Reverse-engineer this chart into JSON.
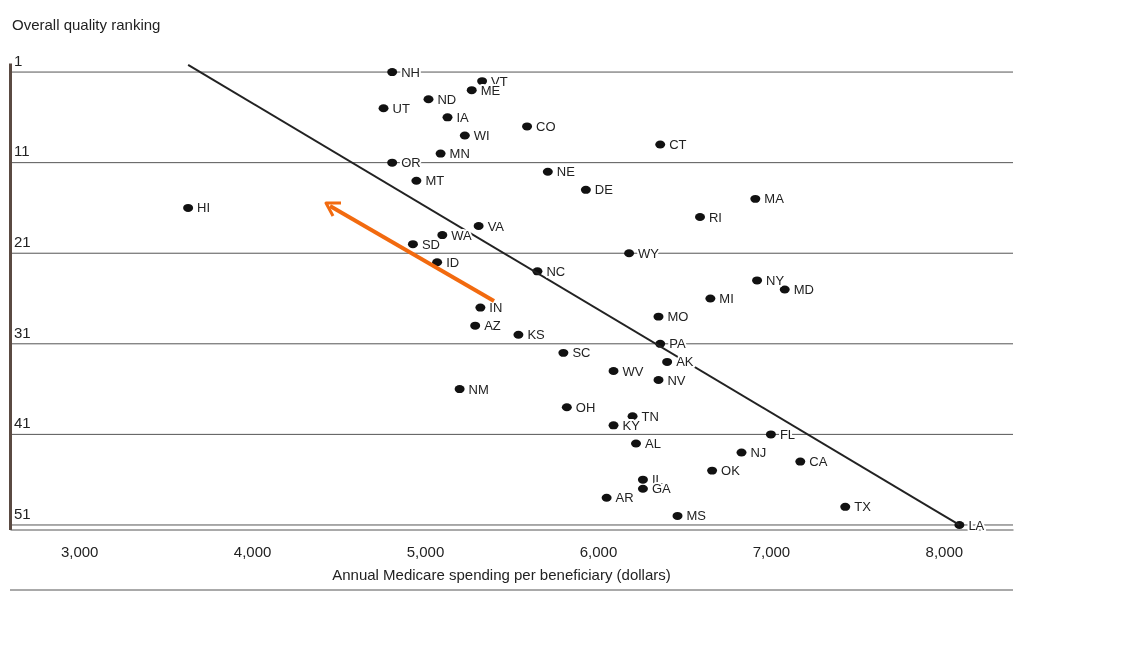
{
  "chart_data": {
    "type": "scatter",
    "ylabel": "Overall quality ranking",
    "xlabel": "Annual Medicare spending per beneficiary (dollars)",
    "xlim": [
      2600,
      8400
    ],
    "xticks": [
      {
        "value": 3000,
        "label": "3,000"
      },
      {
        "value": 4000,
        "label": "4,000"
      },
      {
        "value": 5000,
        "label": "5,000"
      },
      {
        "value": 6000,
        "label": "6,000"
      },
      {
        "value": 7000,
        "label": "7,000"
      },
      {
        "value": 8000,
        "label": "8,000"
      }
    ],
    "ylim": [
      51.5,
      0
    ],
    "yticks": [
      1,
      11,
      21,
      31,
      41,
      51
    ],
    "grid": "y",
    "series": [
      {
        "type": "scatter",
        "marker": "circle",
        "color": "#111111",
        "x": [
          4810,
          5330,
          5270,
          5020,
          4760,
          5130,
          5590,
          5230,
          6360,
          5090,
          4810,
          5710,
          4950,
          5930,
          6910,
          3630,
          6590,
          5310,
          5100,
          4930,
          6180,
          5070,
          5650,
          6920,
          7080,
          6650,
          5320,
          6350,
          5290,
          5540,
          6360,
          5800,
          6400,
          6090,
          6350,
          5200,
          5820,
          6200,
          6090,
          7000,
          6220,
          6830,
          7170,
          6660,
          6260,
          6260,
          6050,
          7430,
          6460,
          8090
        ],
        "values": [
          1,
          2,
          3,
          4,
          5,
          6,
          7,
          8,
          9,
          10,
          11,
          12,
          13,
          14,
          15,
          16,
          17,
          18,
          19,
          20,
          21,
          22,
          23,
          24,
          25,
          26,
          27,
          28,
          29,
          30,
          31,
          32,
          33,
          34,
          35,
          36,
          38,
          39,
          40,
          41,
          42,
          43,
          44,
          45,
          46,
          47,
          48,
          49,
          50,
          51
        ]
      },
      {
        "type": "line",
        "color": "#222222",
        "x": [
          3630,
          8090
        ],
        "values": [
          0.2,
          51
        ]
      }
    ],
    "annotations": [
      {
        "text": "NH",
        "x": 4810,
        "y": 1
      },
      {
        "text": "VT",
        "x": 5330,
        "y": 2
      },
      {
        "text": "ME",
        "x": 5270,
        "y": 3
      },
      {
        "text": "ND",
        "x": 5020,
        "y": 4
      },
      {
        "text": "UT",
        "x": 4760,
        "y": 5
      },
      {
        "text": "IA",
        "x": 5130,
        "y": 6
      },
      {
        "text": "CO",
        "x": 5590,
        "y": 7
      },
      {
        "text": "WI",
        "x": 5230,
        "y": 8
      },
      {
        "text": "CT",
        "x": 6360,
        "y": 9
      },
      {
        "text": "MN",
        "x": 5090,
        "y": 10
      },
      {
        "text": "OR",
        "x": 4810,
        "y": 11
      },
      {
        "text": "NE",
        "x": 5710,
        "y": 12
      },
      {
        "text": "MT",
        "x": 4950,
        "y": 13
      },
      {
        "text": "DE",
        "x": 5930,
        "y": 14
      },
      {
        "text": "MA",
        "x": 6910,
        "y": 15
      },
      {
        "text": "HI",
        "x": 3630,
        "y": 16
      },
      {
        "text": "RI",
        "x": 6590,
        "y": 17
      },
      {
        "text": "VA",
        "x": 5310,
        "y": 18
      },
      {
        "text": "WA",
        "x": 5100,
        "y": 19
      },
      {
        "text": "SD",
        "x": 4930,
        "y": 20
      },
      {
        "text": "WY",
        "x": 6180,
        "y": 21
      },
      {
        "text": "ID",
        "x": 5070,
        "y": 22
      },
      {
        "text": "NC",
        "x": 5650,
        "y": 23
      },
      {
        "text": "NY",
        "x": 6920,
        "y": 24
      },
      {
        "text": "MD",
        "x": 7080,
        "y": 25
      },
      {
        "text": "MI",
        "x": 6650,
        "y": 26
      },
      {
        "text": "IN",
        "x": 5320,
        "y": 27
      },
      {
        "text": "MO",
        "x": 6350,
        "y": 28
      },
      {
        "text": "AZ",
        "x": 5290,
        "y": 29
      },
      {
        "text": "KS",
        "x": 5540,
        "y": 30
      },
      {
        "text": "PA",
        "x": 6360,
        "y": 31
      },
      {
        "text": "SC",
        "x": 5800,
        "y": 32
      },
      {
        "text": "AK",
        "x": 6400,
        "y": 33
      },
      {
        "text": "WV",
        "x": 6090,
        "y": 34
      },
      {
        "text": "NV",
        "x": 6350,
        "y": 35
      },
      {
        "text": "NM",
        "x": 5200,
        "y": 36
      },
      {
        "text": "OH",
        "x": 5820,
        "y": 38
      },
      {
        "text": "TN",
        "x": 6200,
        "y": 39
      },
      {
        "text": "KY",
        "x": 6090,
        "y": 40
      },
      {
        "text": "FL",
        "x": 7000,
        "y": 41
      },
      {
        "text": "AL",
        "x": 6220,
        "y": 42
      },
      {
        "text": "NJ",
        "x": 6830,
        "y": 43
      },
      {
        "text": "CA",
        "x": 7170,
        "y": 44
      },
      {
        "text": "OK",
        "x": 6660,
        "y": 45
      },
      {
        "text": "IL",
        "x": 6260,
        "y": 46
      },
      {
        "text": "GA",
        "x": 6260,
        "y": 47
      },
      {
        "text": "AR",
        "x": 6050,
        "y": 48
      },
      {
        "text": "TX",
        "x": 7430,
        "y": 49
      },
      {
        "text": "MS",
        "x": 6460,
        "y": 50
      },
      {
        "text": "LA",
        "x": 8090,
        "y": 51
      }
    ]
  }
}
